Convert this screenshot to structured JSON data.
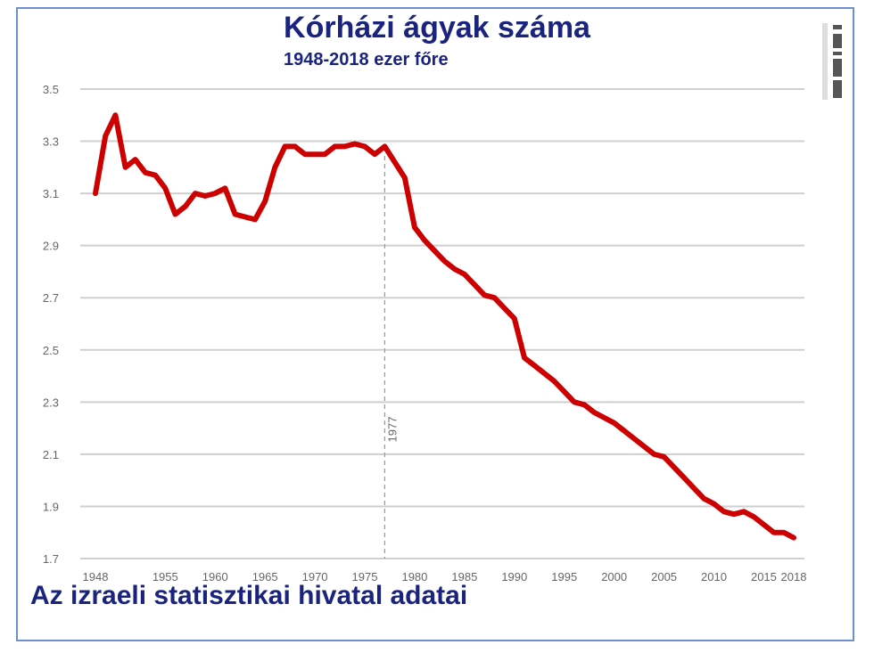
{
  "chart_data": {
    "type": "line",
    "title": "Kórházi ágyak száma",
    "subtitle": "1948-2018 ezer főre",
    "source": "Az izraeli statisztikai hivatal adatai",
    "xlabel": "",
    "ylabel": "",
    "xlim": [
      1948,
      2018
    ],
    "ylim": [
      1.7,
      3.5
    ],
    "grid": true,
    "line_color": "#cc0000",
    "title_color": "#1a237e",
    "x_ticks": [
      1948,
      1955,
      1960,
      1965,
      1970,
      1975,
      1980,
      1985,
      1990,
      1995,
      2000,
      2005,
      2010,
      2015,
      2018
    ],
    "x_tick_labels": [
      "1948",
      "1955",
      "1960",
      "1965",
      "1970",
      "1975",
      "1980",
      "1985",
      "1990",
      "1995",
      "2000",
      "2005",
      "2010",
      "2015",
      "2018"
    ],
    "y_ticks": [
      1.7,
      1.9,
      2.1,
      2.3,
      2.5,
      2.7,
      2.9,
      3.1,
      3.3,
      3.5
    ],
    "y_tick_labels": [
      "1.7",
      "1.9",
      "2.1",
      "2.3",
      "2.5",
      "2.7",
      "2.9",
      "3.1",
      "3.3",
      "3.5"
    ],
    "annotations": [
      {
        "x": 1977,
        "label": "1977"
      }
    ],
    "series": [
      {
        "x": [
          1948,
          1949,
          1950,
          1951,
          1952,
          1953,
          1954,
          1955,
          1956,
          1957,
          1958,
          1959,
          1960,
          1961,
          1962,
          1963,
          1964,
          1965,
          1966,
          1967,
          1968,
          1969,
          1970,
          1971,
          1972,
          1973,
          1974,
          1975,
          1976,
          1977,
          1978,
          1979,
          1980,
          1981,
          1982,
          1983,
          1984,
          1985,
          1986,
          1987,
          1988,
          1989,
          1990,
          1991,
          1992,
          1993,
          1994,
          1995,
          1996,
          1997,
          1998,
          1999,
          2000,
          2001,
          2002,
          2003,
          2004,
          2005,
          2006,
          2007,
          2008,
          2009,
          2010,
          2011,
          2012,
          2013,
          2014,
          2015,
          2016,
          2017,
          2018
        ],
        "values": [
          3.1,
          3.32,
          3.4,
          3.2,
          3.23,
          3.18,
          3.17,
          3.12,
          3.02,
          3.05,
          3.1,
          3.09,
          3.1,
          3.12,
          3.02,
          3.01,
          3.0,
          3.07,
          3.2,
          3.28,
          3.28,
          3.25,
          3.25,
          3.25,
          3.28,
          3.28,
          3.29,
          3.28,
          3.25,
          3.28,
          3.22,
          3.16,
          2.97,
          2.92,
          2.88,
          2.84,
          2.81,
          2.79,
          2.75,
          2.71,
          2.7,
          2.66,
          2.62,
          2.47,
          2.44,
          2.41,
          2.38,
          2.34,
          2.3,
          2.29,
          2.26,
          2.24,
          2.22,
          2.19,
          2.16,
          2.13,
          2.1,
          2.09,
          2.05,
          2.01,
          1.97,
          1.93,
          1.91,
          1.88,
          1.87,
          1.88,
          1.86,
          1.83,
          1.8,
          1.8,
          1.78
        ]
      }
    ]
  }
}
